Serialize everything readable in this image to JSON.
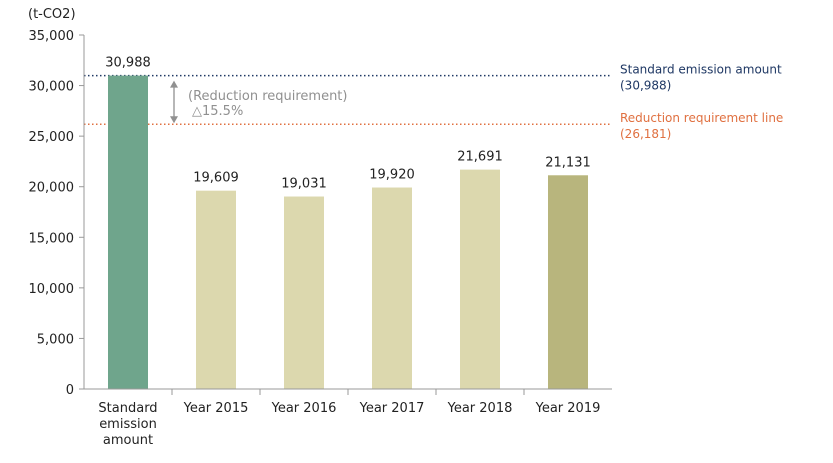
{
  "chart_data": {
    "type": "bar",
    "unit_label": "(t-CO2)",
    "title": "",
    "xlabel": "",
    "ylabel": "",
    "ylim": [
      0,
      35000
    ],
    "y_ticks": [
      "0",
      "5,000",
      "10,000",
      "15,000",
      "20,000",
      "25,000",
      "30,000",
      "35,000"
    ],
    "y_tick_values": [
      0,
      5000,
      10000,
      15000,
      20000,
      25000,
      30000,
      35000
    ],
    "grid": false,
    "categories": [
      [
        "Standard",
        "emission",
        "amount"
      ],
      [
        "Year 2015"
      ],
      [
        "Year 2016"
      ],
      [
        "Year 2017"
      ],
      [
        "Year 2018"
      ],
      [
        "Year 2019"
      ]
    ],
    "values": [
      30988,
      19609,
      19031,
      19920,
      21691,
      21131
    ],
    "value_labels": [
      "30,988",
      "19,609",
      "19,031",
      "19,920",
      "21,691",
      "21,131"
    ],
    "bar_colors": [
      "#6fa58c",
      "#dcd8ae",
      "#dcd8ae",
      "#dcd8ae",
      "#dcd8ae",
      "#b8b57d"
    ],
    "reference_lines": [
      {
        "value": 30988,
        "label": "Standard emission amount",
        "sublabel": "(30,988)",
        "color": "#1f3864",
        "style": "dotted"
      },
      {
        "value": 26181,
        "label": "Reduction requirement line",
        "sublabel": "(26,181)",
        "color": "#e07040",
        "style": "dotted"
      }
    ],
    "annotation": {
      "text": "(Reduction requirement)",
      "subtext": "△15.5%",
      "from": 30988,
      "to": 26181,
      "color": "#909090"
    }
  }
}
